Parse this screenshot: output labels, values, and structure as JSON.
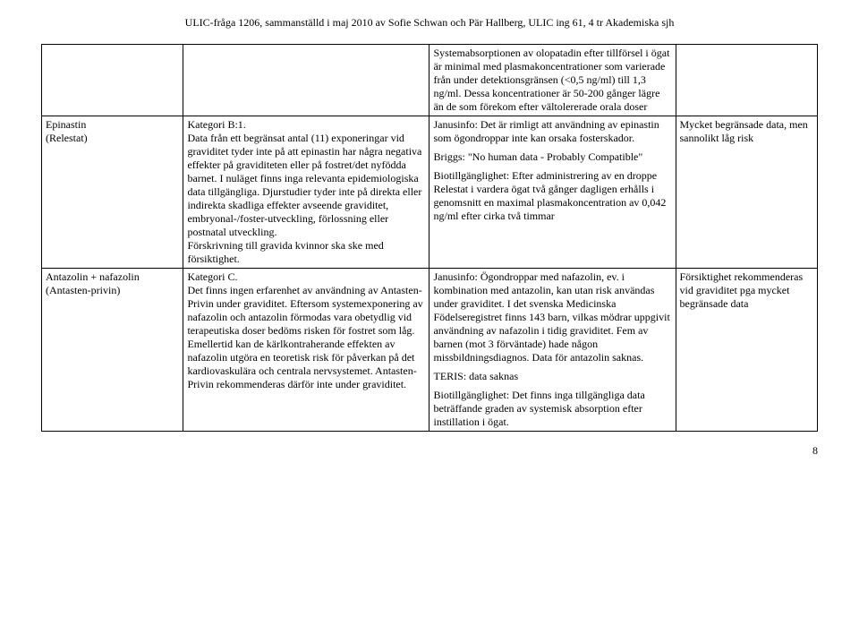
{
  "header": "ULIC-fråga 1206, sammanställd i maj 2010 av Sofie Schwan och Pär Hallberg, ULIC ing 61, 4 tr Akademiska sjh",
  "rows": [
    {
      "c1": "",
      "c2": "",
      "c3": "Systemabsorptionen av olopatadin efter tillförsel i ögat är minimal med plasmakoncentrationer som varierade från under detektionsgränsen (<0,5 ng/ml) till 1,3 ng/ml. Dessa koncentrationer är 50-200 gånger lägre än de som förekom efter vältolererade orala doser",
      "c4": ""
    },
    {
      "c1": "Epinastin\n(Relestat)",
      "c2": "Kategori B:1.\nData från ett begränsat antal (11) exponeringar vid graviditet tyder inte på att epinastin har några negativa effekter på graviditeten eller på fostret/det nyfödda barnet. I nuläget finns inga relevanta epidemiologiska data tillgängliga. Djurstudier tyder inte på direkta eller indirekta skadliga effekter avseende graviditet, embryonal-/foster-utveckling, förlossning eller postnatal utveckling.\nFörskrivning till gravida kvinnor ska ske med försiktighet.",
      "c3": "Janusinfo: Det är rimligt att användning av epinastin som ögondroppar inte kan orsaka fosterskador.\n\nBriggs: \"No human data - Probably Compatible\"\n\nBiotillgänglighet: Efter administrering av en droppe Relestat i vardera ögat två gånger dagligen erhålls i genomsnitt en maximal plasmakoncentration av 0,042 ng/ml efter cirka två timmar",
      "c4": "Mycket begränsade data, men sannolikt låg risk"
    },
    {
      "c1": "Antazolin + nafazolin\n(Antasten-privin)",
      "c2": "Kategori C.\nDet finns ingen erfarenhet av användning av Antasten-Privin under graviditet. Eftersom systemexponering av nafazolin och antazolin förmodas vara obetydlig vid terapeutiska doser bedöms risken för fostret som låg. Emellertid kan de kärlkontraherande effekten av nafazolin utgöra en teoretisk risk för påverkan på det kardiovaskulära och centrala nervsystemet. Antasten-Privin rekommenderas därför inte under graviditet.",
      "c3": "Janusinfo: Ögondroppar med nafazolin, ev. i kombination med antazolin, kan utan risk användas under graviditet. I det svenska Medicinska Födelseregistret finns 143 barn, vilkas mödrar uppgivit användning av nafazolin i tidig graviditet. Fem av barnen (mot 3 förväntade) hade någon missbildningsdiagnos. Data för antazolin saknas.\n\nTERIS: data saknas\n\nBiotillgänglighet: Det finns inga tillgängliga data beträffande graden av systemisk absorption efter instillation i ögat.",
      "c4": "Försiktighet rekommenderas vid graviditet pga mycket begränsade data"
    }
  ],
  "pageNumber": "8"
}
